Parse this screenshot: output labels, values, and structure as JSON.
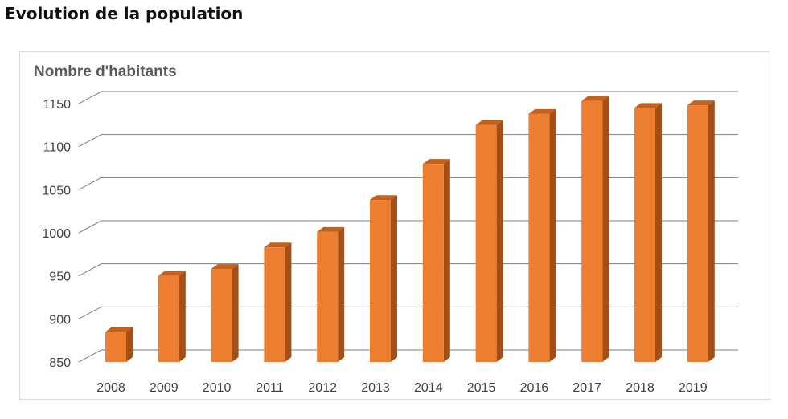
{
  "page": {
    "heading": "Evolution de la population"
  },
  "chart_data": {
    "type": "bar",
    "title": "Nombre d'habitants",
    "categories": [
      "2008",
      "2009",
      "2010",
      "2011",
      "2012",
      "2013",
      "2014",
      "2015",
      "2016",
      "2017",
      "2018",
      "2019"
    ],
    "values": [
      885,
      950,
      958,
      983,
      1001,
      1038,
      1080,
      1125,
      1138,
      1153,
      1145,
      1148
    ],
    "ylim": [
      850,
      1150
    ],
    "yticks": [
      850,
      900,
      950,
      1000,
      1050,
      1100,
      1150
    ],
    "grid": true,
    "style": "3d",
    "colors": {
      "bar_front": "#ED7D31",
      "bar_side": "#A34F15",
      "bar_top": "#C5611E",
      "axis_text": "#404040",
      "title_text": "#595959",
      "gridline": "#7f7f7f"
    }
  }
}
